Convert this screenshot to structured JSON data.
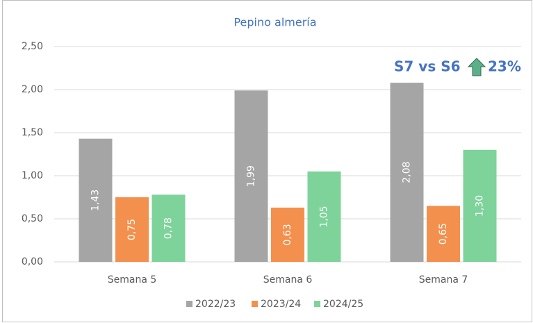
{
  "chart_data": {
    "type": "bar",
    "title": "Pepino almería",
    "categories": [
      "Semana 5",
      "Semana 6",
      "Semana 7"
    ],
    "series": [
      {
        "name": "2022/23",
        "color": "#a5a5a5",
        "values": [
          1.43,
          1.99,
          2.08
        ],
        "value_labels": [
          "1,43",
          "1,99",
          "2,08"
        ]
      },
      {
        "name": "2023/24",
        "color": "#f4904d",
        "values": [
          0.75,
          0.63,
          0.65
        ],
        "value_labels": [
          "0,75",
          "0,63",
          "0,65"
        ]
      },
      {
        "name": "2024/25",
        "color": "#7dd39a",
        "values": [
          0.78,
          1.05,
          1.3
        ],
        "value_labels": [
          "0,78",
          "1,05",
          "1,30"
        ]
      }
    ],
    "ylim": [
      0,
      2.5
    ],
    "yticks": [
      {
        "value": 0,
        "label": "0,00"
      },
      {
        "value": 0.5,
        "label": "0,50"
      },
      {
        "value": 1,
        "label": "1,00"
      },
      {
        "value": 1.5,
        "label": "1,50"
      },
      {
        "value": 2,
        "label": "2,00"
      },
      {
        "value": 2.5,
        "label": "2,50"
      }
    ],
    "grid": true,
    "legend": "bottom",
    "annotations": [
      "S7 vs S6",
      "23%"
    ]
  }
}
